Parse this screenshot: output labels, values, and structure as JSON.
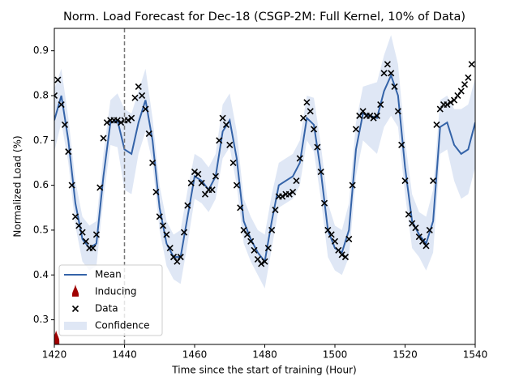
{
  "chart_data": {
    "type": "line",
    "title": "Norm. Load Forecast for Dec-18 (CSGP-2M: Full Kernel, 10% of Data)",
    "xlabel": "Time since the start of training (Hour)",
    "ylabel": "Normalized Load (%)",
    "xlim": [
      1420,
      1540
    ],
    "ylim": [
      0.245,
      0.95
    ],
    "xticks": [
      1420,
      1440,
      1460,
      1480,
      1500,
      1520,
      1540
    ],
    "yticks": [
      0.3,
      0.4,
      0.5,
      0.6,
      0.7,
      0.8,
      0.9
    ],
    "vline": 1440,
    "legend": "lower left",
    "mean": {
      "name": "Mean",
      "color": "#3463a8",
      "x": [
        1420,
        1422,
        1424,
        1426,
        1428,
        1430,
        1432,
        1434,
        1436,
        1438,
        1440,
        1442,
        1444,
        1446,
        1448,
        1450,
        1452,
        1454,
        1456,
        1458,
        1460,
        1462,
        1464,
        1466,
        1468,
        1470,
        1472,
        1474,
        1476,
        1478,
        1480,
        1482,
        1484,
        1486,
        1488,
        1490,
        1492,
        1494,
        1496,
        1498,
        1500,
        1502,
        1504,
        1506,
        1508,
        1510,
        1512,
        1514,
        1516,
        1518,
        1520,
        1522,
        1524,
        1526,
        1528,
        1530,
        1532,
        1534,
        1536,
        1538,
        1540
      ],
      "values": [
        0.745,
        0.8,
        0.7,
        0.56,
        0.48,
        0.46,
        0.47,
        0.62,
        0.74,
        0.745,
        0.68,
        0.67,
        0.74,
        0.79,
        0.7,
        0.55,
        0.47,
        0.44,
        0.44,
        0.53,
        0.62,
        0.61,
        0.59,
        0.62,
        0.72,
        0.745,
        0.66,
        0.52,
        0.48,
        0.45,
        0.43,
        0.52,
        0.6,
        0.61,
        0.62,
        0.65,
        0.75,
        0.735,
        0.63,
        0.5,
        0.46,
        0.45,
        0.5,
        0.68,
        0.76,
        0.755,
        0.75,
        0.81,
        0.845,
        0.8,
        0.64,
        0.52,
        0.49,
        0.47,
        0.52,
        0.73,
        0.74,
        0.69,
        0.67,
        0.68,
        0.74
      ]
    },
    "confidence": {
      "name": "Confidence",
      "color": "#c9d7ee",
      "lower": [
        0.675,
        0.74,
        0.65,
        0.51,
        0.43,
        0.41,
        0.42,
        0.57,
        0.69,
        0.685,
        0.59,
        0.58,
        0.67,
        0.72,
        0.65,
        0.5,
        0.42,
        0.39,
        0.38,
        0.47,
        0.57,
        0.56,
        0.54,
        0.57,
        0.66,
        0.685,
        0.6,
        0.47,
        0.43,
        0.4,
        0.37,
        0.46,
        0.55,
        0.56,
        0.57,
        0.6,
        0.7,
        0.675,
        0.57,
        0.44,
        0.41,
        0.4,
        0.44,
        0.62,
        0.7,
        0.685,
        0.67,
        0.73,
        0.755,
        0.73,
        0.58,
        0.46,
        0.44,
        0.41,
        0.45,
        0.67,
        0.68,
        0.61,
        0.57,
        0.58,
        0.64
      ],
      "upper": [
        0.815,
        0.86,
        0.75,
        0.61,
        0.53,
        0.51,
        0.52,
        0.67,
        0.79,
        0.805,
        0.77,
        0.76,
        0.81,
        0.86,
        0.75,
        0.6,
        0.52,
        0.49,
        0.5,
        0.59,
        0.67,
        0.66,
        0.64,
        0.67,
        0.78,
        0.805,
        0.72,
        0.57,
        0.53,
        0.5,
        0.49,
        0.58,
        0.65,
        0.66,
        0.67,
        0.7,
        0.8,
        0.795,
        0.69,
        0.56,
        0.51,
        0.5,
        0.56,
        0.74,
        0.82,
        0.825,
        0.83,
        0.89,
        0.935,
        0.87,
        0.7,
        0.58,
        0.54,
        0.53,
        0.59,
        0.79,
        0.8,
        0.77,
        0.77,
        0.78,
        0.84
      ]
    },
    "data": {
      "name": "Data",
      "color": "#000000",
      "x": [
        1420,
        1421,
        1422,
        1423,
        1424,
        1425,
        1426,
        1427,
        1428,
        1429,
        1430,
        1431,
        1432,
        1433,
        1434,
        1435,
        1436,
        1437,
        1438,
        1439,
        1440,
        1441,
        1442,
        1443,
        1444,
        1445,
        1446,
        1447,
        1448,
        1449,
        1450,
        1451,
        1452,
        1453,
        1454,
        1455,
        1456,
        1457,
        1458,
        1459,
        1460,
        1461,
        1462,
        1463,
        1464,
        1465,
        1466,
        1467,
        1468,
        1469,
        1470,
        1471,
        1472,
        1473,
        1474,
        1475,
        1476,
        1477,
        1478,
        1479,
        1480,
        1481,
        1482,
        1483,
        1484,
        1485,
        1486,
        1487,
        1488,
        1489,
        1490,
        1491,
        1492,
        1493,
        1494,
        1495,
        1496,
        1497,
        1498,
        1499,
        1500,
        1501,
        1502,
        1503,
        1504,
        1505,
        1506,
        1507,
        1508,
        1509,
        1510,
        1511,
        1512,
        1513,
        1514,
        1515,
        1516,
        1517,
        1518,
        1519,
        1520,
        1521,
        1522,
        1523,
        1524,
        1525,
        1526,
        1527,
        1528,
        1529,
        1530,
        1531,
        1532,
        1533,
        1534,
        1535,
        1536,
        1537,
        1538,
        1539
      ],
      "values": [
        0.8,
        0.835,
        0.78,
        0.735,
        0.675,
        0.6,
        0.53,
        0.51,
        0.495,
        0.475,
        0.46,
        0.46,
        0.49,
        0.595,
        0.705,
        0.74,
        0.745,
        0.745,
        0.745,
        0.74,
        0.745,
        0.745,
        0.75,
        0.795,
        0.82,
        0.8,
        0.77,
        0.715,
        0.65,
        0.585,
        0.53,
        0.51,
        0.49,
        0.46,
        0.44,
        0.43,
        0.44,
        0.495,
        0.555,
        0.605,
        0.63,
        0.625,
        0.605,
        0.58,
        0.59,
        0.59,
        0.62,
        0.7,
        0.75,
        0.735,
        0.69,
        0.65,
        0.6,
        0.55,
        0.5,
        0.49,
        0.475,
        0.455,
        0.435,
        0.425,
        0.43,
        0.46,
        0.5,
        0.545,
        0.575,
        0.575,
        0.58,
        0.58,
        0.585,
        0.61,
        0.66,
        0.75,
        0.785,
        0.765,
        0.725,
        0.685,
        0.63,
        0.56,
        0.5,
        0.49,
        0.475,
        0.455,
        0.445,
        0.44,
        0.48,
        0.6,
        0.725,
        0.755,
        0.765,
        0.755,
        0.755,
        0.75,
        0.755,
        0.78,
        0.85,
        0.87,
        0.85,
        0.82,
        0.765,
        0.69,
        0.61,
        0.535,
        0.515,
        0.505,
        0.485,
        0.475,
        0.465,
        0.5,
        0.61,
        0.735,
        0.77,
        0.78,
        0.78,
        0.785,
        0.79,
        0.8,
        0.81,
        0.825,
        0.84,
        0.87
      ]
    },
    "inducing": {
      "name": "Inducing",
      "color": "#a00000",
      "x": [
        1420.5
      ],
      "values": [
        0.26
      ]
    }
  }
}
